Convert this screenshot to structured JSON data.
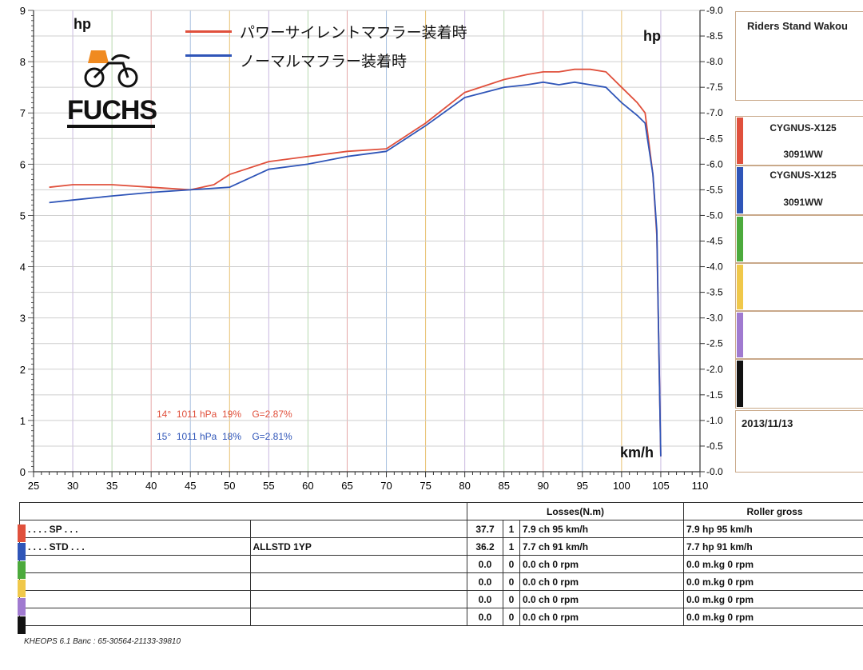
{
  "chart_data": {
    "type": "line",
    "title": "",
    "xlabel": "km/h",
    "ylabel": "hp",
    "y2label": "hp",
    "xlim": [
      25,
      110
    ],
    "ylim": [
      0,
      9
    ],
    "y2lim": [
      0,
      9.0
    ],
    "x_ticks": [
      25,
      30,
      35,
      40,
      45,
      50,
      55,
      60,
      65,
      70,
      75,
      80,
      85,
      90,
      95,
      100,
      105,
      110
    ],
    "y_ticks": [
      0,
      1,
      2,
      3,
      4,
      5,
      6,
      7,
      8,
      9
    ],
    "y2_ticks": [
      "0.0",
      "0.5",
      "1.0",
      "1.5",
      "2.0",
      "2.5",
      "3.0",
      "3.5",
      "4.0",
      "4.5",
      "5.0",
      "5.5",
      "6.0",
      "6.5",
      "7.0",
      "7.5",
      "8.0",
      "8.5",
      "9.0"
    ],
    "grid": true,
    "legend_position": "top",
    "series": [
      {
        "name": "パワーサイレントマフラー装着時",
        "color": "#e0503c",
        "x": [
          27,
          30,
          35,
          40,
          45,
          48,
          50,
          55,
          60,
          65,
          70,
          75,
          80,
          85,
          88,
          90,
          92,
          94,
          96,
          98,
          100,
          102,
          103,
          104,
          104.5,
          105
        ],
        "values": [
          5.55,
          5.6,
          5.6,
          5.55,
          5.5,
          5.6,
          5.8,
          6.05,
          6.15,
          6.25,
          6.3,
          6.8,
          7.4,
          7.65,
          7.75,
          7.8,
          7.8,
          7.85,
          7.85,
          7.8,
          7.5,
          7.2,
          7.0,
          5.8,
          4.6,
          0.3
        ]
      },
      {
        "name": "ノーマルマフラー装着時",
        "color": "#2f55b8",
        "x": [
          27,
          30,
          35,
          40,
          45,
          50,
          55,
          60,
          65,
          70,
          75,
          80,
          85,
          88,
          90,
          92,
          94,
          96,
          98,
          100,
          102,
          103,
          104,
          104.5,
          105
        ],
        "values": [
          5.25,
          5.3,
          5.38,
          5.45,
          5.5,
          5.55,
          5.9,
          6.0,
          6.15,
          6.25,
          6.75,
          7.3,
          7.5,
          7.55,
          7.6,
          7.55,
          7.6,
          7.55,
          7.5,
          7.2,
          6.95,
          6.8,
          5.8,
          4.7,
          0.3
        ]
      }
    ],
    "annotations": [
      {
        "text": "14°  1011 hPa  19%    G=2.87%",
        "color": "#e0503c"
      },
      {
        "text": "15°  1011 hPa  18%    G=2.81%",
        "color": "#2f55b8"
      }
    ]
  },
  "legend": {
    "items": [
      {
        "label": "パワーサイレントマフラー装着時",
        "color": "#e0503c"
      },
      {
        "label": "ノーマルマフラー装着時",
        "color": "#2f55b8"
      }
    ]
  },
  "logo": {
    "text": "FUCHS"
  },
  "axis": {
    "y_label_left": "hp",
    "y_label_right": "hp",
    "x_unit": "km/h"
  },
  "conditions": {
    "red": "14°  1011 hPa  19%    G=2.87%",
    "blue": "15°  1011 hPa  18%    G=2.81%"
  },
  "right_panel": {
    "title": "Riders Stand Wakou",
    "vehicles": [
      {
        "model": "CYGNUS-X125",
        "plate": "3091WW",
        "color": "#e0503c"
      },
      {
        "model": "CYGNUS-X125",
        "plate": "3091WW",
        "color": "#2f55b8"
      }
    ],
    "slot_colors": [
      "#e0503c",
      "#2f55b8",
      "#4caa3c",
      "#f0c84a",
      "#a07ad0",
      "#111111"
    ],
    "date": "2013/11/13"
  },
  "table": {
    "headers": {
      "losses": "Losses(N.m)",
      "roller": "Roller gross"
    },
    "rows": [
      {
        "color": "#e0503c",
        "name": ". . . . SP . . .",
        "note": "",
        "loss": "37.7",
        "n": "1",
        "ch": "7.9 ch 95 km/h",
        "roller": "7.9 hp 95 km/h"
      },
      {
        "color": "#2f55b8",
        "name": ". . . . STD . . .",
        "note": "ALLSTD 1YP",
        "loss": "36.2",
        "n": "1",
        "ch": "7.7 ch 91 km/h",
        "roller": "7.7 hp 91 km/h"
      },
      {
        "color": "#4caa3c",
        "name": "",
        "note": "",
        "loss": "0.0",
        "n": "0",
        "ch": "0.0 ch 0 rpm",
        "roller": "0.0 m.kg 0 rpm"
      },
      {
        "color": "#f0c84a",
        "name": "",
        "note": "",
        "loss": "0.0",
        "n": "0",
        "ch": "0.0 ch 0 rpm",
        "roller": "0.0 m.kg 0 rpm"
      },
      {
        "color": "#a07ad0",
        "name": "",
        "note": "",
        "loss": "0.0",
        "n": "0",
        "ch": "0.0 ch 0 rpm",
        "roller": "0.0 m.kg 0 rpm"
      },
      {
        "color": "#111111",
        "name": "",
        "note": "",
        "loss": "0.0",
        "n": "0",
        "ch": "0.0 ch 0 rpm",
        "roller": "0.0 m.kg 0 rpm"
      }
    ]
  },
  "footer": "KHEOPS 6.1  Banc : 65-30564-21133-39810"
}
